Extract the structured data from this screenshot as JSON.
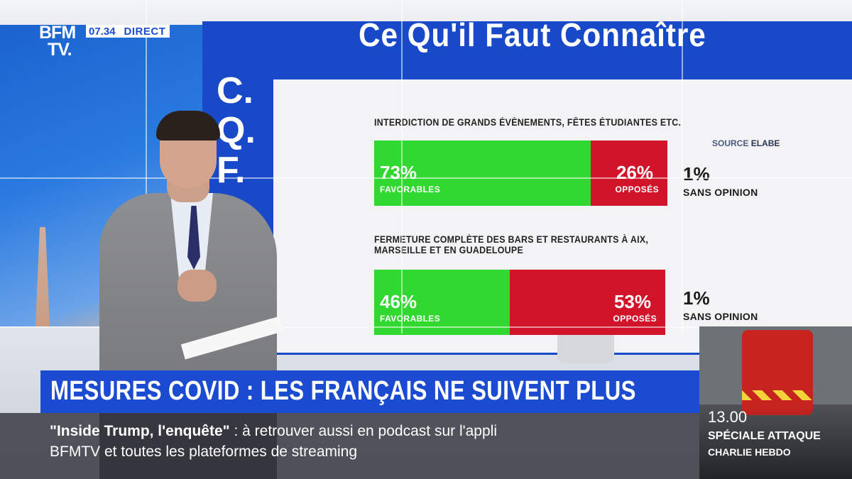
{
  "channel": {
    "logo_line1": "BFM",
    "logo_line2": "TV.",
    "time": "07.34",
    "live_label": "DIRECT"
  },
  "screen": {
    "headline": "Ce Qu'il Faut Connaître",
    "side_letters": [
      "C.",
      "Q.",
      "F."
    ],
    "source_prefix": "SOURCE ",
    "source_name": "ELABE",
    "questions": [
      {
        "text": "INTERDICTION DE GRANDS ÉVÈNEMENTS, FÊTES ÉTUDIANTES ETC.",
        "favorable": {
          "value": 73,
          "pct": "73%",
          "label": "FAVORABLES"
        },
        "opposed": {
          "value": 26,
          "pct": "26%",
          "label": "OPPOSÉS"
        },
        "no_opinion": {
          "value": 1,
          "pct": "1%",
          "label": "SANS OPINION"
        }
      },
      {
        "text": "FERMETURE COMPLÈTE DES BARS ET RESTAURANTS À AIX, MARSEILLE ET EN GUADELOUPE",
        "favorable": {
          "value": 46,
          "pct": "46%",
          "label": "FAVORABLES"
        },
        "opposed": {
          "value": 53,
          "pct": "53%",
          "label": "OPPOSÉS"
        },
        "no_opinion": {
          "value": 1,
          "pct": "1%",
          "label": "SANS OPINION"
        }
      }
    ],
    "colors": {
      "favorable": "#31d82f",
      "opposed": "#d2142b",
      "accent": "#1a4bd1"
    }
  },
  "banner": {
    "text": "MESURES COVID : LES FRANÇAIS NE SUIVENT PLUS"
  },
  "ticker": {
    "quoted": "\"Inside Trump, l'enquête\"",
    "line1_rest": " :  à retrouver aussi en podcast sur l'appli",
    "line2": "BFMTV et toutes les plateformes de streaming"
  },
  "next_program": {
    "time": "13.00",
    "title": "SPÉCIALE ATTAQUE",
    "subtitle": "CHARLIE HEBDO"
  }
}
